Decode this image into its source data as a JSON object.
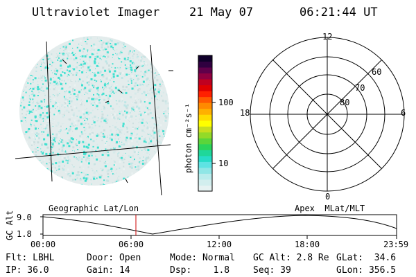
{
  "header": {
    "instrument": "Ultraviolet Imager",
    "date": "21 May 07",
    "time": "06:21:44 UT"
  },
  "colorbar": {
    "unit_label": "photon cm⁻²s⁻¹",
    "ticks": [
      "100",
      "10"
    ],
    "colors": [
      "#e6f2f2",
      "#d2eeee",
      "#b9ecec",
      "#8fe6e6",
      "#5ee3e3",
      "#27dcc8",
      "#1fd79a",
      "#2bd45a",
      "#5bd53a",
      "#93da28",
      "#c8de1f",
      "#ffff00",
      "#ffdc00",
      "#ffb000",
      "#ff8a00",
      "#ff5a00",
      "#ff2000",
      "#e00000",
      "#c00020",
      "#900040",
      "#60004a",
      "#300040",
      "#10002a"
    ]
  },
  "polar_grid": {
    "mlt_labels": [
      "12",
      "18",
      "6",
      "0"
    ],
    "lat_labels": [
      "60",
      "70",
      "80"
    ]
  },
  "plot_labels": {
    "left": "Geographic Lat/Lon",
    "right": "Apex  MLat/MLT"
  },
  "altitude_plot": {
    "ylabel": "GC Alt",
    "yticks": [
      "9.0",
      "1.8"
    ],
    "xticks": [
      "00:00",
      "06:00",
      "12:00",
      "18:00",
      "23:59"
    ]
  },
  "footer": {
    "row1": {
      "flt": "Flt: LBHL",
      "door": "Door: Open",
      "mode": "Mode: Normal",
      "gcalt": "GC Alt: 2.8 Re",
      "glat": "GLat:  34.6"
    },
    "row2": {
      "ip": "IP: 36.0",
      "gain": "Gain: 14",
      "dsp": "Dsp:    1.8",
      "seq": "Seq: 39",
      "glon": "GLon: 356.5"
    }
  },
  "colors": {
    "cyan": "#3fe0d0",
    "light": "#dfe9e9",
    "marker": "#cc0000"
  }
}
